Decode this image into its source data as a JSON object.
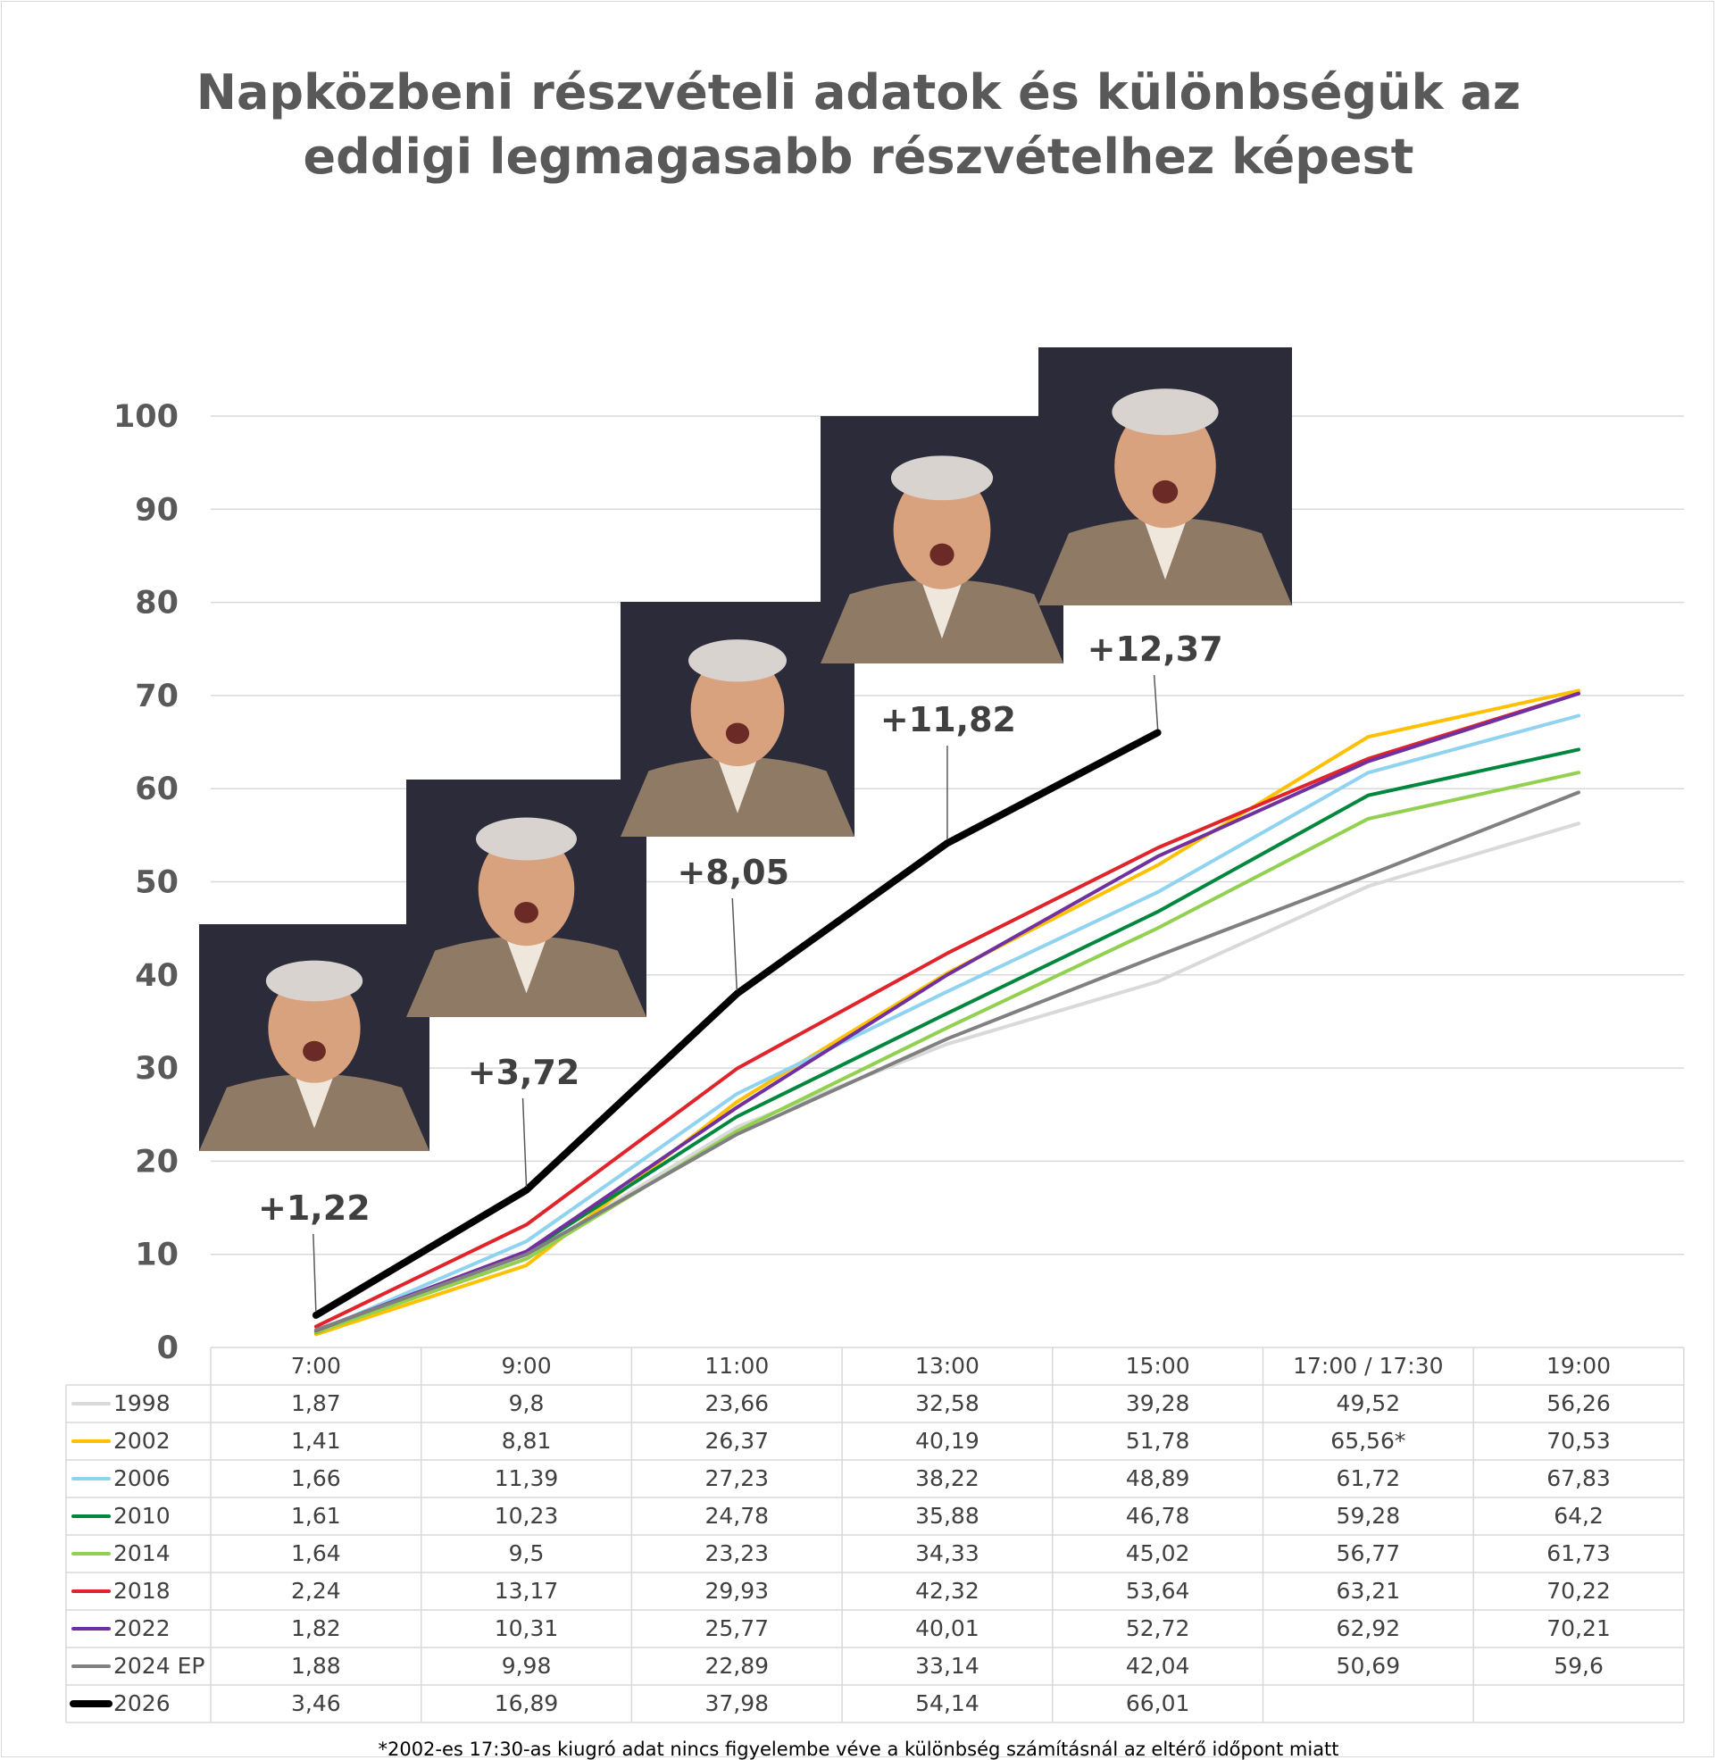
{
  "title_lines": [
    "Napközbeni részvételi adatok és különbségük az",
    "eddigi legmagasabb részvételhez képest"
  ],
  "footnote": "*2002-es 17:30-as kiugró adat nincs figyelembe véve a különbség számításnál az eltérő időpont miatt",
  "chart_data": {
    "type": "line",
    "title": "Napközbeni részvételi adatok és különbségük az eddigi legmagasabb részvételhez képest",
    "categories": [
      "7:00",
      "9:00",
      "11:00",
      "13:00",
      "15:00",
      "17:00 / 17:30",
      "19:00"
    ],
    "ylim": [
      0,
      100
    ],
    "yticks": [
      0,
      10,
      20,
      30,
      40,
      50,
      60,
      70,
      80,
      90,
      100
    ],
    "grid": true,
    "legend": "data-table",
    "series": [
      {
        "name": "1998",
        "color": "#d9d9d9",
        "values": [
          1.87,
          9.8,
          23.66,
          32.58,
          39.28,
          49.52,
          56.26
        ],
        "labels": [
          "1,87",
          "9,8",
          "23,66",
          "32,58",
          "39,28",
          "49,52",
          "56,26"
        ]
      },
      {
        "name": "2002",
        "color": "#ffc000",
        "values": [
          1.41,
          8.81,
          26.37,
          40.19,
          51.78,
          65.56,
          70.53
        ],
        "labels": [
          "1,41",
          "8,81",
          "26,37",
          "40,19",
          "51,78",
          "65,56*",
          "70,53"
        ]
      },
      {
        "name": "2006",
        "color": "#8fd3f0",
        "values": [
          1.66,
          11.39,
          27.23,
          38.22,
          48.89,
          61.72,
          67.83
        ],
        "labels": [
          "1,66",
          "11,39",
          "27,23",
          "38,22",
          "48,89",
          "61,72",
          "67,83"
        ]
      },
      {
        "name": "2010",
        "color": "#00873e",
        "values": [
          1.61,
          10.23,
          24.78,
          35.88,
          46.78,
          59.28,
          64.2
        ],
        "labels": [
          "1,61",
          "10,23",
          "24,78",
          "35,88",
          "46,78",
          "59,28",
          "64,2"
        ]
      },
      {
        "name": "2014",
        "color": "#92d050",
        "values": [
          1.64,
          9.5,
          23.23,
          34.33,
          45.02,
          56.77,
          61.73
        ],
        "labels": [
          "1,64",
          "9,5",
          "23,23",
          "34,33",
          "45,02",
          "56,77",
          "61,73"
        ]
      },
      {
        "name": "2018",
        "color": "#e0242c",
        "values": [
          2.24,
          13.17,
          29.93,
          42.32,
          53.64,
          63.21,
          70.22
        ],
        "labels": [
          "2,24",
          "13,17",
          "29,93",
          "42,32",
          "53,64",
          "63,21",
          "70,22"
        ]
      },
      {
        "name": "2022",
        "color": "#7030a0",
        "values": [
          1.82,
          10.31,
          25.77,
          40.01,
          52.72,
          62.92,
          70.21
        ],
        "labels": [
          "1,82",
          "10,31",
          "25,77",
          "40,01",
          "52,72",
          "62,92",
          "70,21"
        ]
      },
      {
        "name": "2024 EP",
        "color": "#808080",
        "values": [
          1.88,
          9.98,
          22.89,
          33.14,
          42.04,
          50.69,
          59.6
        ],
        "labels": [
          "1,88",
          "9,98",
          "22,89",
          "33,14",
          "42,04",
          "50,69",
          "59,6"
        ]
      },
      {
        "name": "2026",
        "color": "#000000",
        "values": [
          3.46,
          16.89,
          37.98,
          54.14,
          66.01,
          null,
          null
        ],
        "labels": [
          "3,46",
          "16,89",
          "37,98",
          "54,14",
          "66,01",
          "",
          ""
        ]
      }
    ],
    "annotations": [
      {
        "text": "+1,22",
        "category_index": 0
      },
      {
        "text": "+3,72",
        "category_index": 1
      },
      {
        "text": "+8,05",
        "category_index": 2
      },
      {
        "text": "+11,82",
        "category_index": 3
      },
      {
        "text": "+12,37",
        "category_index": 4
      }
    ]
  },
  "photo_style": {
    "background": "#2b2b3a",
    "suit": "#8f7a66",
    "skin": "#d9a27e",
    "hair": "#d8d3cf",
    "shirt": "#efe6dc"
  }
}
